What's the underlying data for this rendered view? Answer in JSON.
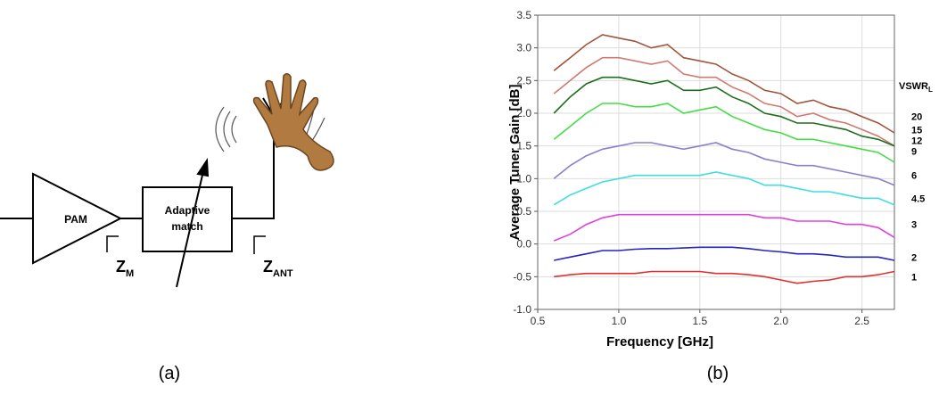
{
  "diagram": {
    "amplifier": "PAM",
    "matcher": [
      "Adaptive",
      "match"
    ],
    "z_m": {
      "main": "Z",
      "sub": "M"
    },
    "z_ant": {
      "main": "Z",
      "sub": "ANT"
    }
  },
  "captions": [
    "(a)",
    "(b)"
  ],
  "chart_data": {
    "type": "line",
    "x_label": "Frequency [GHz]",
    "y_label": "Average Tuner Gain [dB]",
    "legend_title": "VSWR",
    "legend_title_sub": "L",
    "x": [
      0.6,
      0.7,
      0.8,
      0.9,
      1.0,
      1.1,
      1.2,
      1.3,
      1.4,
      1.5,
      1.6,
      1.7,
      1.8,
      1.9,
      2.0,
      2.1,
      2.2,
      2.3,
      2.4,
      2.5,
      2.6,
      2.7
    ],
    "xlim": [
      0.5,
      2.7
    ],
    "ylim": [
      -1,
      3.5
    ],
    "xticks": [
      0.5,
      {
        "value": 1,
        "label": "1.0"
      },
      1.5,
      {
        "value": 2,
        "label": "2.0"
      },
      2.5
    ],
    "yticks": [
      {
        "value": -1,
        "label": "-1.0"
      },
      -0.5,
      {
        "value": 0,
        "label": "0.0"
      },
      0.5,
      {
        "value": 1,
        "label": "1.0"
      },
      1.5,
      {
        "value": 2,
        "label": "2.0"
      },
      2.5,
      {
        "value": 3,
        "label": "3.0"
      },
      3.5
    ],
    "grid": true,
    "series": [
      {
        "name": "20",
        "color": "#a0553a",
        "values": [
          2.65,
          2.85,
          3.05,
          3.2,
          3.15,
          3.1,
          3.0,
          3.05,
          2.85,
          2.8,
          2.75,
          2.6,
          2.5,
          2.35,
          2.3,
          2.15,
          2.2,
          2.1,
          2.05,
          1.95,
          1.85,
          1.7
        ]
      },
      {
        "name": "15",
        "color": "#d07a70",
        "values": [
          2.3,
          2.5,
          2.7,
          2.85,
          2.85,
          2.8,
          2.75,
          2.8,
          2.6,
          2.55,
          2.55,
          2.4,
          2.3,
          2.15,
          2.1,
          1.95,
          2.0,
          1.9,
          1.85,
          1.75,
          1.65,
          1.5
        ]
      },
      {
        "name": "12",
        "color": "#1e6e1e",
        "values": [
          2.0,
          2.25,
          2.45,
          2.55,
          2.55,
          2.5,
          2.45,
          2.5,
          2.35,
          2.35,
          2.4,
          2.25,
          2.15,
          2.0,
          1.95,
          1.85,
          1.85,
          1.8,
          1.75,
          1.65,
          1.6,
          1.5
        ]
      },
      {
        "name": "9",
        "color": "#44dd44",
        "values": [
          1.6,
          1.8,
          2.0,
          2.15,
          2.15,
          2.1,
          2.1,
          2.15,
          2.0,
          2.05,
          2.1,
          1.95,
          1.85,
          1.75,
          1.7,
          1.6,
          1.6,
          1.55,
          1.5,
          1.45,
          1.4,
          1.25
        ]
      },
      {
        "name": "6",
        "color": "#8a80d0",
        "values": [
          1.0,
          1.2,
          1.35,
          1.45,
          1.5,
          1.55,
          1.55,
          1.5,
          1.45,
          1.5,
          1.55,
          1.45,
          1.4,
          1.3,
          1.25,
          1.2,
          1.2,
          1.15,
          1.1,
          1.05,
          1.0,
          0.9
        ]
      },
      {
        "name": "4.5",
        "color": "#40dede",
        "values": [
          0.6,
          0.75,
          0.85,
          0.95,
          1.0,
          1.05,
          1.05,
          1.05,
          1.05,
          1.05,
          1.1,
          1.05,
          1.0,
          0.9,
          0.9,
          0.85,
          0.8,
          0.8,
          0.75,
          0.7,
          0.7,
          0.6
        ]
      },
      {
        "name": "3",
        "color": "#e040e0",
        "values": [
          0.05,
          0.15,
          0.3,
          0.4,
          0.45,
          0.45,
          0.45,
          0.45,
          0.45,
          0.45,
          0.45,
          0.45,
          0.45,
          0.4,
          0.4,
          0.35,
          0.35,
          0.35,
          0.3,
          0.3,
          0.25,
          0.1
        ]
      },
      {
        "name": "2",
        "color": "#2424c0",
        "values": [
          -0.25,
          -0.2,
          -0.15,
          -0.1,
          -0.1,
          -0.08,
          -0.07,
          -0.07,
          -0.06,
          -0.05,
          -0.05,
          -0.05,
          -0.07,
          -0.1,
          -0.12,
          -0.15,
          -0.15,
          -0.17,
          -0.2,
          -0.2,
          -0.2,
          -0.25
        ]
      },
      {
        "name": "1",
        "color": "#e03030",
        "values": [
          -0.5,
          -0.47,
          -0.45,
          -0.45,
          -0.45,
          -0.45,
          -0.42,
          -0.42,
          -0.42,
          -0.42,
          -0.45,
          -0.45,
          -0.47,
          -0.5,
          -0.55,
          -0.6,
          -0.57,
          -0.55,
          -0.5,
          -0.5,
          -0.47,
          -0.42
        ]
      }
    ]
  }
}
